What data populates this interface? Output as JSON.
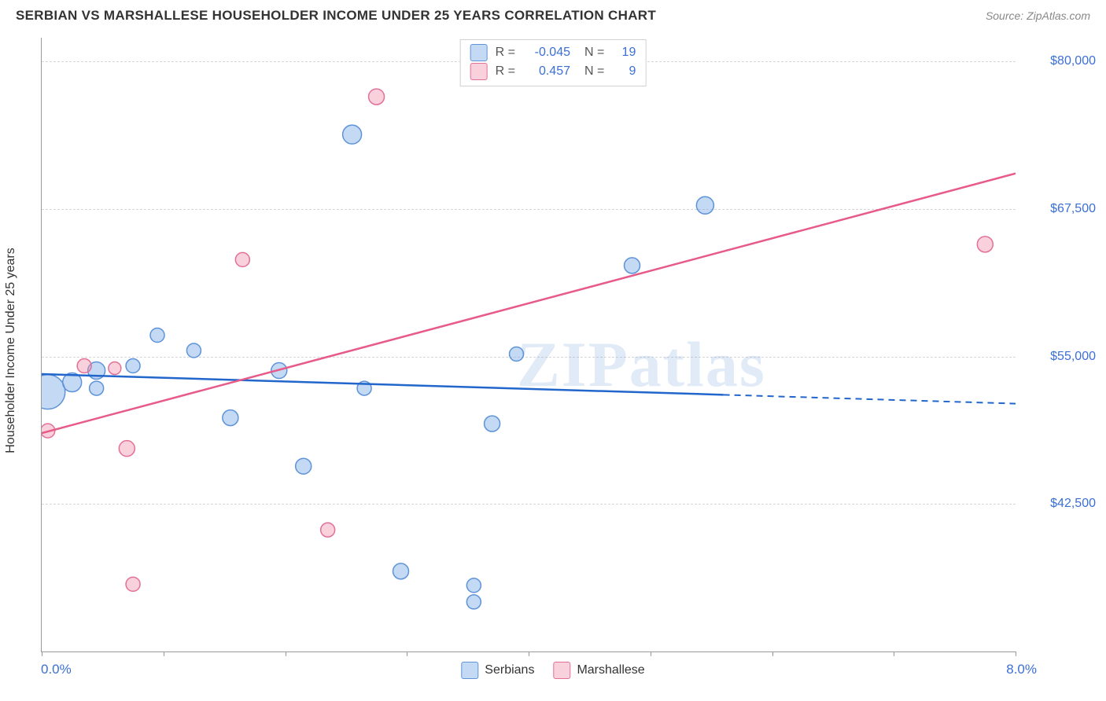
{
  "title": "SERBIAN VS MARSHALLESE HOUSEHOLDER INCOME UNDER 25 YEARS CORRELATION CHART",
  "source_label": "Source: ",
  "source_name": "ZipAtlas.com",
  "watermark": "ZIPatlas",
  "y_axis_title": "Householder Income Under 25 years",
  "x_min_label": "0.0%",
  "x_max_label": "8.0%",
  "chart": {
    "type": "scatter-correlation",
    "xlim": [
      0,
      8
    ],
    "ylim": [
      30000,
      82000
    ],
    "y_ticks": [
      {
        "v": 42500,
        "label": "$42,500"
      },
      {
        "v": 55000,
        "label": "$55,000"
      },
      {
        "v": 67500,
        "label": "$67,500"
      },
      {
        "v": 80000,
        "label": "$80,000"
      }
    ],
    "x_tick_step": 1,
    "grid_color": "#d5d5d5",
    "background": "#ffffff",
    "series": [
      {
        "name": "Serbians",
        "color_fill": "rgba(125,170,230,0.45)",
        "color_stroke": "#5d93d8",
        "line_color": "#2266cc",
        "R": "-0.045",
        "N": "19",
        "trend": {
          "x0": 0,
          "y0": 53500,
          "x1": 8,
          "y1": 51000,
          "solid_until_x": 5.6
        },
        "points": [
          {
            "x": 0.05,
            "y": 52000,
            "r": 22
          },
          {
            "x": 0.25,
            "y": 52800,
            "r": 12
          },
          {
            "x": 0.45,
            "y": 53800,
            "r": 11
          },
          {
            "x": 0.45,
            "y": 52300,
            "r": 9
          },
          {
            "x": 0.75,
            "y": 54200,
            "r": 9
          },
          {
            "x": 0.95,
            "y": 56800,
            "r": 9
          },
          {
            "x": 1.25,
            "y": 55500,
            "r": 9
          },
          {
            "x": 1.55,
            "y": 49800,
            "r": 10
          },
          {
            "x": 1.95,
            "y": 53800,
            "r": 10
          },
          {
            "x": 2.15,
            "y": 45700,
            "r": 10
          },
          {
            "x": 2.55,
            "y": 73800,
            "r": 12
          },
          {
            "x": 2.65,
            "y": 52300,
            "r": 9
          },
          {
            "x": 2.95,
            "y": 36800,
            "r": 10
          },
          {
            "x": 3.55,
            "y": 35600,
            "r": 9
          },
          {
            "x": 3.55,
            "y": 34200,
            "r": 9
          },
          {
            "x": 3.7,
            "y": 49300,
            "r": 10
          },
          {
            "x": 3.9,
            "y": 55200,
            "r": 9
          },
          {
            "x": 4.85,
            "y": 62700,
            "r": 10
          },
          {
            "x": 5.45,
            "y": 67800,
            "r": 11
          }
        ]
      },
      {
        "name": "Marshallese",
        "color_fill": "rgba(240,140,170,0.40)",
        "color_stroke": "#e46f97",
        "line_color": "#e85a88",
        "R": "0.457",
        "N": "9",
        "trend": {
          "x0": 0,
          "y0": 48500,
          "x1": 8,
          "y1": 70500,
          "solid_until_x": 8
        },
        "points": [
          {
            "x": 0.05,
            "y": 48700,
            "r": 9
          },
          {
            "x": 0.35,
            "y": 54200,
            "r": 9
          },
          {
            "x": 0.6,
            "y": 54000,
            "r": 8
          },
          {
            "x": 0.7,
            "y": 47200,
            "r": 10
          },
          {
            "x": 0.75,
            "y": 35700,
            "r": 9
          },
          {
            "x": 1.65,
            "y": 63200,
            "r": 9
          },
          {
            "x": 2.35,
            "y": 40300,
            "r": 9
          },
          {
            "x": 2.75,
            "y": 77000,
            "r": 10
          },
          {
            "x": 7.75,
            "y": 64500,
            "r": 10
          }
        ]
      }
    ]
  },
  "bottom_legend": [
    "Serbians",
    "Marshallese"
  ]
}
